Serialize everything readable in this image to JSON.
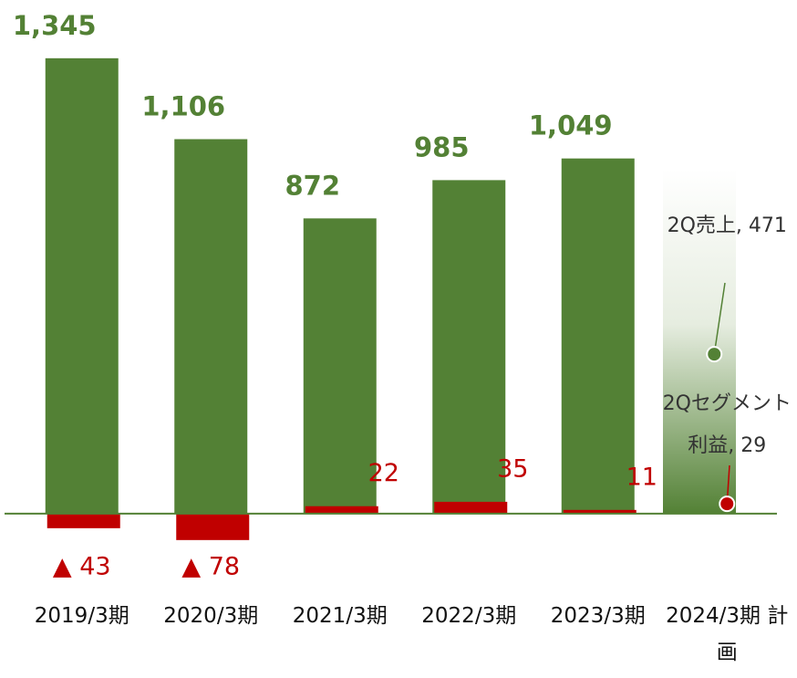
{
  "chart_data": {
    "type": "bar",
    "categories": [
      "2019/3期",
      "2020/3期",
      "2021/3期",
      "2022/3期",
      "2023/3期",
      "2024/3期 計画"
    ],
    "series": [
      {
        "name": "売上",
        "color": "#538135",
        "values": [
          1345,
          1106,
          872,
          985,
          1049,
          null
        ],
        "value_labels": [
          "1,345",
          "1,106",
          "872",
          "985",
          "1,049",
          null
        ]
      },
      {
        "name": "セグメント利益",
        "color": "#c00000",
        "values": [
          -43,
          -78,
          22,
          35,
          11,
          null
        ],
        "value_labels": [
          "▲ 43",
          "▲ 78",
          "22",
          "35",
          "11",
          null
        ]
      }
    ],
    "annotations": [
      {
        "text": "2Q売上, 471",
        "value": 471,
        "color": "#538135"
      },
      {
        "text": "2Qセグメント利益, 29",
        "value": 29,
        "color": "#c00000"
      }
    ],
    "ylim": [
      -100,
      1517
    ]
  }
}
